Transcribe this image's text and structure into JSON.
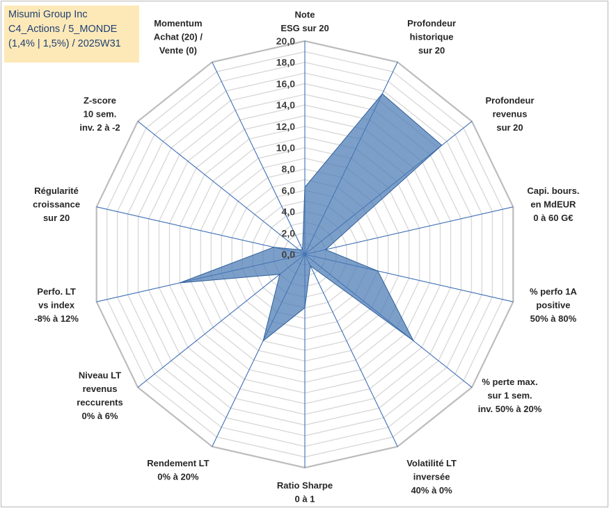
{
  "header": {
    "lines": [
      "Misumi Group Inc",
      "C4_Actions / 5_MONDE",
      "(1,4% | 1,5%) / 2025W31"
    ]
  },
  "chart_data": {
    "type": "radar",
    "r_ticks": [
      "0,0",
      "2,0",
      "4,0",
      "6,0",
      "8,0",
      "10,0",
      "12,0",
      "14,0",
      "16,0",
      "18,0",
      "20,0"
    ],
    "rlim": [
      0,
      20
    ],
    "axes": [
      [
        "Note",
        "ESG sur 20"
      ],
      [
        "Profondeur",
        "historique",
        "sur 20"
      ],
      [
        "Profondeur",
        "revenus",
        "sur 20"
      ],
      [
        "Capi. bours.",
        "en MdEUR",
        "0 à 60 G€"
      ],
      [
        "% perfo 1A",
        "positive",
        "50% à 80%"
      ],
      [
        "% perte max.",
        "sur 1 sem.",
        "inv. 50% à 20%"
      ],
      [
        "Volatilité LT",
        "inversée",
        "40% à 0%"
      ],
      [
        "Ratio Sharpe",
        "0 à 1"
      ],
      [
        "Rendement LT",
        "0% à 20%"
      ],
      [
        "Niveau LT",
        "revenus",
        "reccurents",
        "0% à 6%"
      ],
      [
        "Perfo. LT",
        "vs index",
        "-8% à 12%"
      ],
      [
        "Régularité",
        "croissance",
        "sur 20"
      ],
      [
        "Z-score",
        "10 sem.",
        "inv. 2 à -2"
      ],
      [
        "Momentum",
        "Achat (20) /",
        "Vente (0)"
      ]
    ],
    "values": [
      6.3,
      16.7,
      16.4,
      2.0,
      7.0,
      13.0,
      1.2,
      5.0,
      9.0,
      3.0,
      12.0,
      3.0,
      0.7,
      0.5
    ],
    "colors": {
      "fill": "#4a7ab4",
      "fill_opacity": 0.72,
      "series_stroke": "#2e5f9a",
      "spoke": "#3b6eb5",
      "grid_outer": "#bcbcbc",
      "grid_inner": "#d9d9d9"
    },
    "grid": true,
    "legend": "none"
  }
}
